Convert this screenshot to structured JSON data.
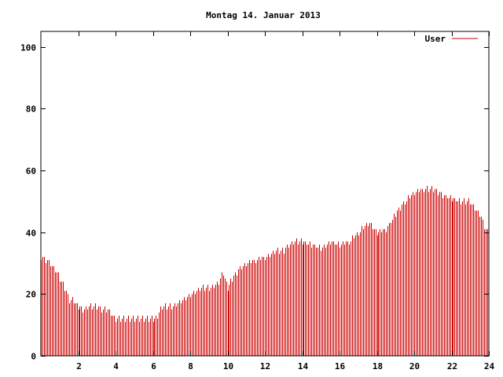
{
  "chart_data": {
    "type": "bar",
    "title": "Montag 14. Januar 2013",
    "xlabel": "",
    "ylabel": "",
    "xlim": [
      0,
      24
    ],
    "ylim": [
      0,
      105
    ],
    "grid": false,
    "legend": {
      "position": "top-right",
      "entries": [
        "User"
      ]
    },
    "x_ticks": [
      "2",
      "4",
      "6",
      "8",
      "10",
      "12",
      "14",
      "16",
      "18",
      "20",
      "22",
      "24"
    ],
    "y_ticks": [
      "0",
      "20",
      "40",
      "60",
      "80",
      "100"
    ],
    "series": [
      {
        "name": "User",
        "color": "#cc0000",
        "anchors": [
          [
            0.0,
            32
          ],
          [
            0.25,
            31
          ],
          [
            0.5,
            30
          ],
          [
            0.75,
            28
          ],
          [
            1.0,
            25
          ],
          [
            1.25,
            22
          ],
          [
            1.5,
            18
          ],
          [
            1.75,
            18
          ],
          [
            2.0,
            16
          ],
          [
            2.25,
            15
          ],
          [
            2.5,
            16
          ],
          [
            2.75,
            16
          ],
          [
            3.0,
            16
          ],
          [
            3.25,
            15
          ],
          [
            3.5,
            15
          ],
          [
            3.75,
            14
          ],
          [
            4.0,
            12
          ],
          [
            4.25,
            12
          ],
          [
            4.5,
            12
          ],
          [
            5.0,
            12
          ],
          [
            5.5,
            12
          ],
          [
            6.0,
            12
          ],
          [
            6.25,
            13
          ],
          [
            6.5,
            16
          ],
          [
            7.0,
            16
          ],
          [
            7.5,
            18
          ],
          [
            8.0,
            20
          ],
          [
            8.5,
            22
          ],
          [
            9.0,
            22
          ],
          [
            9.5,
            24
          ],
          [
            9.75,
            27
          ],
          [
            10.0,
            22
          ],
          [
            10.25,
            25
          ],
          [
            10.5,
            27
          ],
          [
            11.0,
            30
          ],
          [
            11.5,
            31
          ],
          [
            12.0,
            32
          ],
          [
            12.5,
            34
          ],
          [
            13.0,
            34
          ],
          [
            13.5,
            37
          ],
          [
            14.0,
            37
          ],
          [
            14.5,
            36
          ],
          [
            15.0,
            35
          ],
          [
            15.5,
            37
          ],
          [
            16.0,
            36
          ],
          [
            16.5,
            37
          ],
          [
            17.0,
            40
          ],
          [
            17.5,
            43
          ],
          [
            18.0,
            40
          ],
          [
            18.5,
            41
          ],
          [
            19.0,
            46
          ],
          [
            19.5,
            50
          ],
          [
            20.0,
            53
          ],
          [
            20.5,
            54
          ],
          [
            21.0,
            54
          ],
          [
            21.5,
            52
          ],
          [
            22.0,
            51
          ],
          [
            22.5,
            50
          ],
          [
            23.0,
            50
          ],
          [
            23.25,
            48
          ],
          [
            23.5,
            46
          ],
          [
            23.75,
            42
          ],
          [
            24.0,
            40
          ]
        ]
      }
    ]
  }
}
